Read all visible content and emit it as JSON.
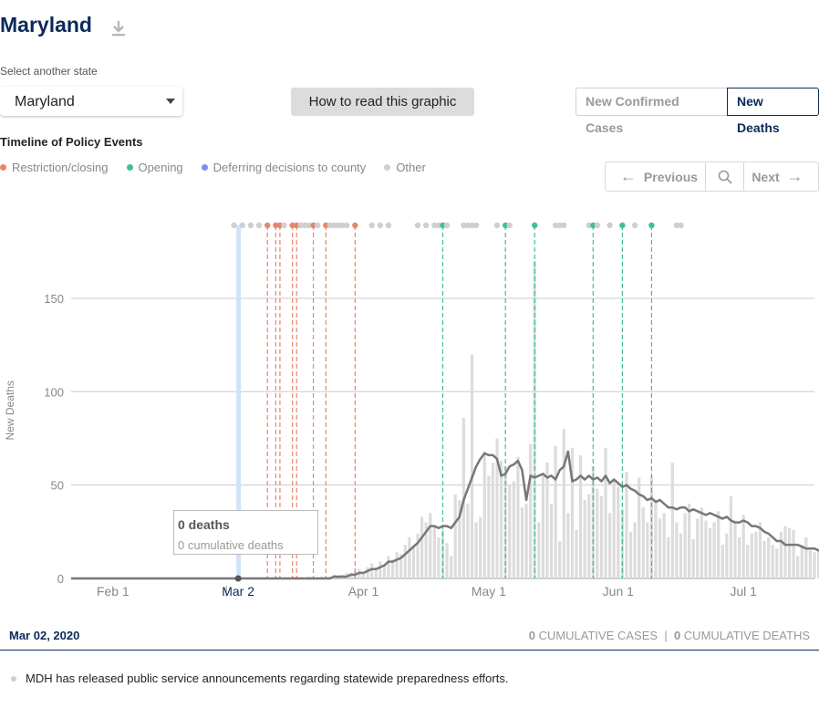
{
  "header": {
    "title": "Maryland",
    "download_icon": "download-icon"
  },
  "state_select": {
    "label": "Select another state",
    "value": "Maryland"
  },
  "how_to_button": "How to read this graphic",
  "metric_toggle": {
    "options": [
      "New Confirmed Cases",
      "New Deaths"
    ],
    "selected": "New Deaths"
  },
  "timeline": {
    "heading": "Timeline of Policy Events",
    "legend": [
      {
        "label": "Restriction/closing",
        "color": "#e8866b"
      },
      {
        "label": "Opening",
        "color": "#3cbf9f"
      },
      {
        "label": "Deferring decisions to county",
        "color": "#7b8ff0"
      },
      {
        "label": "Other",
        "color": "#cfcfcf"
      }
    ]
  },
  "nav": {
    "previous": "Previous",
    "next": "Next",
    "search_icon": "search-icon"
  },
  "tooltip": {
    "title": "0 deaths",
    "subtitle": "0 cumulative deaths"
  },
  "footer": {
    "date": "Mar 02, 2020",
    "cum_cases_value": "0",
    "cum_cases_label": "CUMULATIVE CASES",
    "separator": "|",
    "cum_deaths_value": "0",
    "cum_deaths_label": "CUMULATIVE DEATHS"
  },
  "event_text": "MDH has released public service announcements regarding statewide preparedness efforts.",
  "chart_data": {
    "type": "bar",
    "ylabel": "New Deaths",
    "ylim": [
      0,
      190
    ],
    "yticks": [
      0,
      50,
      100,
      150
    ],
    "x_start": "2020-01-22",
    "x_end": "2020-07-18",
    "xticks": [
      {
        "label": "Feb 1",
        "date": "2020-02-01"
      },
      {
        "label": "Mar 2",
        "date": "2020-03-02"
      },
      {
        "label": "Apr 1",
        "date": "2020-04-01"
      },
      {
        "label": "May 1",
        "date": "2020-05-01"
      },
      {
        "label": "Jun 1",
        "date": "2020-06-01"
      },
      {
        "label": "Jul 1",
        "date": "2020-07-01"
      }
    ],
    "highlight_date": "2020-03-02",
    "bar_color": "#dcdcdc",
    "line_color": "#777777",
    "series": [
      {
        "name": "New Deaths",
        "start": "2020-03-19",
        "values": [
          1,
          0,
          0,
          1,
          0,
          1,
          2,
          0,
          2,
          3,
          3,
          4,
          5,
          3,
          6,
          8,
          5,
          9,
          7,
          12,
          10,
          14,
          13,
          18,
          22,
          18,
          24,
          33,
          30,
          35,
          28,
          22,
          26,
          19,
          12,
          45,
          42,
          86,
          40,
          120,
          30,
          33,
          68,
          55,
          62,
          75,
          63,
          60,
          50,
          52,
          65,
          38,
          40,
          72,
          170,
          30,
          55,
          62,
          40,
          71,
          20,
          80,
          35,
          70,
          26,
          66,
          42,
          45,
          60,
          48,
          44,
          70,
          35,
          52,
          49,
          37,
          57,
          25,
          30,
          54,
          38,
          30,
          55,
          42,
          32,
          35,
          22,
          62,
          30,
          24,
          35,
          40,
          21,
          32,
          38,
          31,
          27,
          30,
          36,
          18,
          24,
          44,
          31,
          22,
          34,
          18,
          24,
          25,
          30,
          20,
          22,
          18,
          16,
          25,
          28,
          27,
          26,
          12,
          18,
          22,
          15,
          14,
          15,
          18,
          16,
          13,
          22,
          16,
          12,
          8,
          14,
          10,
          20,
          11,
          13,
          12,
          14
        ]
      },
      {
        "name": "7-day average",
        "start": "2020-03-19",
        "values": [
          0,
          0,
          0,
          0,
          0,
          0,
          1,
          1,
          1,
          1,
          2,
          2,
          3,
          3,
          4,
          5,
          5,
          6,
          7,
          9,
          9,
          10,
          11,
          13,
          15,
          17,
          19,
          22,
          25,
          28,
          28,
          27,
          28,
          28,
          27,
          30,
          33,
          42,
          48,
          54,
          60,
          64,
          67,
          66,
          66,
          64,
          55,
          56,
          60,
          61,
          63,
          58,
          42,
          55,
          54,
          55,
          56,
          54,
          55,
          53,
          58,
          60,
          68,
          52,
          53,
          55,
          53,
          55,
          53,
          54,
          52,
          55,
          51,
          53,
          51,
          49,
          50,
          48,
          47,
          45,
          44,
          42,
          43,
          41,
          42,
          40,
          38,
          38,
          37,
          38,
          38,
          36,
          37,
          36,
          35,
          34,
          35,
          34,
          33,
          32,
          33,
          31,
          30,
          30,
          31,
          30,
          28,
          28,
          27,
          25,
          24,
          22,
          20,
          20,
          18,
          18,
          18,
          18,
          17,
          16,
          16,
          16,
          15,
          15,
          15,
          14,
          14,
          13,
          13,
          12,
          12,
          11,
          11,
          12,
          12,
          11,
          13
        ]
      }
    ],
    "policy_events": [
      {
        "date": "2020-03-01",
        "type": "Other"
      },
      {
        "date": "2020-03-03",
        "type": "Other"
      },
      {
        "date": "2020-03-05",
        "type": "Other"
      },
      {
        "date": "2020-03-07",
        "type": "Other"
      },
      {
        "date": "2020-03-09",
        "type": "Restriction/closing"
      },
      {
        "date": "2020-03-11",
        "type": "Restriction/closing"
      },
      {
        "date": "2020-03-12",
        "type": "Restriction/closing"
      },
      {
        "date": "2020-03-13",
        "type": "Other"
      },
      {
        "date": "2020-03-15",
        "type": "Restriction/closing"
      },
      {
        "date": "2020-03-16",
        "type": "Restriction/closing"
      },
      {
        "date": "2020-03-17",
        "type": "Other"
      },
      {
        "date": "2020-03-18",
        "type": "Other"
      },
      {
        "date": "2020-03-19",
        "type": "Other"
      },
      {
        "date": "2020-03-20",
        "type": "Restriction/closing"
      },
      {
        "date": "2020-03-21",
        "type": "Other"
      },
      {
        "date": "2020-03-23",
        "type": "Restriction/closing"
      },
      {
        "date": "2020-03-24",
        "type": "Other"
      },
      {
        "date": "2020-03-25",
        "type": "Other"
      },
      {
        "date": "2020-03-26",
        "type": "Other"
      },
      {
        "date": "2020-03-27",
        "type": "Other"
      },
      {
        "date": "2020-03-28",
        "type": "Other"
      },
      {
        "date": "2020-03-30",
        "type": "Restriction/closing"
      },
      {
        "date": "2020-04-03",
        "type": "Other"
      },
      {
        "date": "2020-04-05",
        "type": "Other"
      },
      {
        "date": "2020-04-07",
        "type": "Other"
      },
      {
        "date": "2020-04-14",
        "type": "Other"
      },
      {
        "date": "2020-04-16",
        "type": "Other"
      },
      {
        "date": "2020-04-18",
        "type": "Other"
      },
      {
        "date": "2020-04-19",
        "type": "Other"
      },
      {
        "date": "2020-04-20",
        "type": "Opening"
      },
      {
        "date": "2020-04-21",
        "type": "Other"
      },
      {
        "date": "2020-04-25",
        "type": "Other"
      },
      {
        "date": "2020-04-26",
        "type": "Other"
      },
      {
        "date": "2020-04-27",
        "type": "Other"
      },
      {
        "date": "2020-04-28",
        "type": "Other"
      },
      {
        "date": "2020-05-03",
        "type": "Other"
      },
      {
        "date": "2020-05-05",
        "type": "Opening"
      },
      {
        "date": "2020-05-06",
        "type": "Other"
      },
      {
        "date": "2020-05-12",
        "type": "Opening"
      },
      {
        "date": "2020-05-17",
        "type": "Other"
      },
      {
        "date": "2020-05-18",
        "type": "Other"
      },
      {
        "date": "2020-05-19",
        "type": "Other"
      },
      {
        "date": "2020-05-25",
        "type": "Other"
      },
      {
        "date": "2020-05-26",
        "type": "Opening"
      },
      {
        "date": "2020-05-27",
        "type": "Other"
      },
      {
        "date": "2020-05-30",
        "type": "Other"
      },
      {
        "date": "2020-06-02",
        "type": "Opening"
      },
      {
        "date": "2020-06-05",
        "type": "Other"
      },
      {
        "date": "2020-06-09",
        "type": "Opening"
      },
      {
        "date": "2020-06-15",
        "type": "Other"
      },
      {
        "date": "2020-06-16",
        "type": "Other"
      }
    ]
  }
}
